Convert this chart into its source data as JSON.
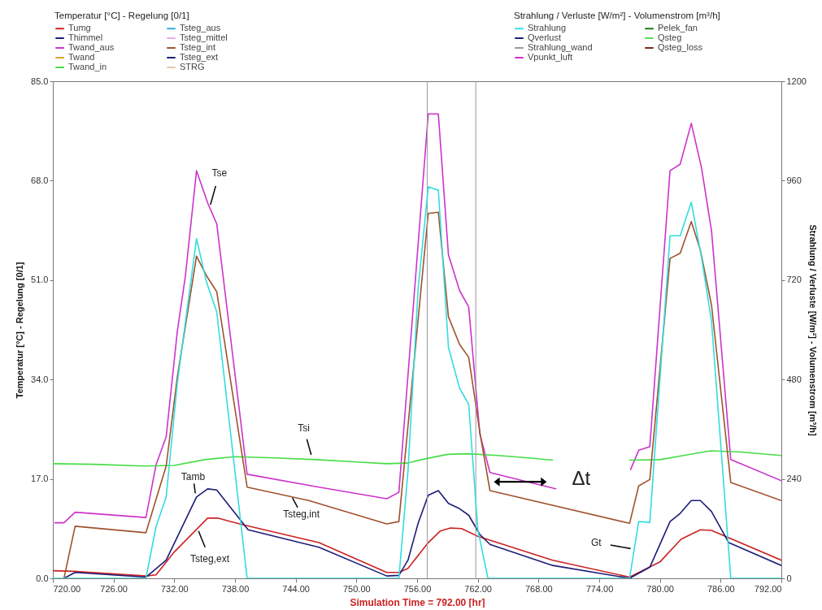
{
  "chart_data": {
    "type": "line",
    "xlabel": "Simulation Time = 792.00 [hr]",
    "ylabel": "Temperatur [°C] - Regelung [0/1]",
    "y2label": "Strahlung / Verluste [W/m²] - Volumenstrom [m³/h]",
    "legend_title": "Temperatur [°C] - Regelung [0/1]",
    "legend": "top",
    "line_style": "solid",
    "xlim": [
      720,
      792
    ],
    "xticks": [
      {
        "value": 720,
        "label": "720.00"
      },
      {
        "value": 726,
        "label": "726.00"
      },
      {
        "value": 732,
        "label": "732.00"
      },
      {
        "value": 738,
        "label": "738.00"
      },
      {
        "value": 744,
        "label": "744.00"
      },
      {
        "value": 750,
        "label": "750.00"
      },
      {
        "value": 756,
        "label": "756.00"
      },
      {
        "value": 762,
        "label": "762.00"
      },
      {
        "value": 768,
        "label": "768.00"
      },
      {
        "value": 774,
        "label": "774.00"
      },
      {
        "value": 780,
        "label": "780.00"
      },
      {
        "value": 786,
        "label": "786.00"
      },
      {
        "value": 792,
        "label": "792.00"
      }
    ],
    "ylim": [
      0,
      85
    ],
    "yticks": [
      {
        "value": 0,
        "label": "0.0"
      },
      {
        "value": 17,
        "label": "17.0"
      },
      {
        "value": 34,
        "label": "34.0"
      },
      {
        "value": 51,
        "label": "51.0"
      },
      {
        "value": 68,
        "label": "68.0"
      },
      {
        "value": 85,
        "label": "85.0"
      }
    ],
    "y2lim": [
      0,
      1200
    ],
    "y2ticks": [
      0,
      240,
      480,
      720,
      960,
      1200
    ],
    "series": [
      {
        "name": "Tumg",
        "color": "#cc2222",
        "x": [
          720,
          722,
          729.2,
          730.2,
          732,
          735.3,
          736.3,
          737.6,
          739.2,
          746.3,
          753.0,
          754.2,
          755.1,
          757.1,
          758.3,
          759.3,
          760.4,
          762.0,
          769.4,
          777.0,
          780.0,
          782.1,
          784.0,
          785.1,
          792
        ],
        "values": [
          1.3,
          1.2,
          0.4,
          0.6,
          4.5,
          10.3,
          10.3,
          9.7,
          9.0,
          6.1,
          1.0,
          1.0,
          1.7,
          6.1,
          8.1,
          8.6,
          8.5,
          7.2,
          3.1,
          0.2,
          2.8,
          6.7,
          8.3,
          8.2,
          3.1
        ]
      },
      {
        "name": "Thimmel",
        "color": "#1c1c78",
        "x": [
          721.1,
          722.2,
          729.2,
          731.2,
          734.2,
          735.3,
          736.2,
          739.3,
          746.3,
          753.0,
          754.2,
          755.1,
          756.1,
          757.1,
          758.1,
          759.1,
          760.2,
          761.1,
          762.2,
          763.2,
          769.4,
          777.0,
          779.0,
          781.0,
          782.0,
          783.1,
          784.0,
          785.1,
          786.8,
          792
        ],
        "values": [
          0,
          1.0,
          0.2,
          3.1,
          13.9,
          15.3,
          15.1,
          8.3,
          5.3,
          0.4,
          0.5,
          3.1,
          9.4,
          14.2,
          15.0,
          12.8,
          11.9,
          10.8,
          7.5,
          5.8,
          2.2,
          0,
          1.9,
          9.7,
          11.1,
          13.3,
          13.3,
          11.4,
          6.1,
          2.2
        ]
      },
      {
        "name": "Twand_aus",
        "color": "#cc33cc",
        "x": [
          720.2,
          721.1,
          722.2,
          729.2,
          730.2,
          731.2,
          732.3,
          733.1,
          734.2,
          735.3,
          736.2,
          739.2,
          746.3,
          753.0,
          754.2,
          757.1,
          758.1,
          759.1,
          760.2,
          761.1,
          762.2,
          763.2,
          769.7,
          773,
          777.1,
          777.9,
          779.0,
          781.0,
          782.0,
          783.1,
          784.1,
          785.1,
          787.0,
          792
        ],
        "values": [
          9.5,
          9.5,
          11.3,
          10.4,
          19.4,
          24.2,
          42.2,
          51.7,
          69.7,
          64.2,
          60.6,
          17.8,
          15.6,
          13.6,
          14.7,
          79.4,
          79.4,
          55.3,
          49.2,
          46.4,
          24.7,
          18.1,
          15.3,
          null,
          18.6,
          21.9,
          22.5,
          69.7,
          70.8,
          77.8,
          70.3,
          59.4,
          20.3,
          16.7
        ]
      },
      {
        "name": "Twand",
        "color": "#e0a030"
      },
      {
        "name": "Twand_in",
        "color": "#44dd44",
        "x": [
          720,
          724,
          729,
          732,
          735,
          738,
          742,
          746,
          750,
          753,
          755,
          757,
          759,
          761,
          764,
          767,
          769.4,
          773,
          777.0,
          780,
          782,
          785,
          788,
          792
        ],
        "values": [
          19.6,
          19.5,
          19.2,
          19.3,
          20.3,
          20.8,
          20.6,
          20.3,
          19.9,
          19.6,
          19.7,
          20.5,
          21.2,
          21.3,
          21.0,
          20.6,
          20.2,
          null,
          20.2,
          20.3,
          20.9,
          21.8,
          21.6,
          21.0
        ]
      },
      {
        "name": "Tsteg_aus",
        "color": "#33aadd"
      },
      {
        "name": "Tsteg_mittel",
        "color": "#eeaaee"
      },
      {
        "name": "Tsteg_int",
        "color": "#a0522d",
        "x": [
          721.1,
          722.2,
          729.2,
          731.2,
          732.3,
          734.2,
          735.2,
          736.2,
          739.2,
          745.3,
          753.0,
          754.2,
          757.1,
          758.1,
          759.1,
          760.2,
          761.1,
          762.2,
          763.2,
          777.0,
          777.9,
          779.0,
          781.0,
          782.0,
          783.1,
          784.0,
          785.1,
          787.0,
          792
        ],
        "values": [
          0,
          8.9,
          7.8,
          19.2,
          34.4,
          55.1,
          51.7,
          49.0,
          15.6,
          13.3,
          9.3,
          9.7,
          62.4,
          62.6,
          44.7,
          40.0,
          37.8,
          25.0,
          15.0,
          9.4,
          15.8,
          16.9,
          54.7,
          55.6,
          61.0,
          56.1,
          46.7,
          16.4,
          13.3
        ]
      },
      {
        "name": "Tsteg_ext",
        "color": "#1c1c78"
      },
      {
        "name": "STRG",
        "color": "#e0c8a8"
      },
      {
        "name": "Strahlung",
        "color": "#33dddd",
        "axis": "y2",
        "x": [
          720,
          729.2,
          730.2,
          731.2,
          732.3,
          734.2,
          735.2,
          736.2,
          739.2,
          753.3,
          754.2,
          755.1,
          756.1,
          757.1,
          758.1,
          759.1,
          760.2,
          761.1,
          762.0,
          763.0,
          777.0,
          777.9,
          779.0,
          781.0,
          782.0,
          783.1,
          784.1,
          785.1,
          787.0,
          792
        ],
        "values": [
          0,
          0,
          125,
          196,
          471,
          820,
          714,
          643,
          0,
          0,
          0,
          259,
          698,
          945,
          937,
          557,
          459,
          420,
          118,
          0,
          0,
          137,
          135,
          827,
          827,
          908,
          776,
          620,
          0,
          0
        ]
      },
      {
        "name": "Qverlust",
        "color": "#1c1c78",
        "axis": "y2"
      },
      {
        "name": "Strahlung_wand",
        "color": "#999999",
        "axis": "y2"
      },
      {
        "name": "Vpunkt_luft",
        "color": "#cc33cc",
        "axis": "y2"
      },
      {
        "name": "Pelek_fan",
        "color": "#1a7a1a",
        "axis": "y2"
      },
      {
        "name": "Qsteg",
        "color": "#55dd55",
        "axis": "y2"
      },
      {
        "name": "Qsteg_loss",
        "color": "#7a2a1a",
        "axis": "y2"
      }
    ],
    "ref_lines": [
      {
        "axis": "x",
        "value": 757.0,
        "color": "#999999"
      },
      {
        "axis": "x",
        "value": 761.8,
        "color": "#999999"
      }
    ],
    "annotations": [
      "Strahlung / Verluste [W/m²] - Volumenstrom [m³/h]",
      {
        "text": "Tse",
        "x": 735.5,
        "y": 63.4
      },
      {
        "text": "Tsi",
        "x": 745.6,
        "y": 20.7
      },
      {
        "text": "Tamb",
        "x": 734.1,
        "y": 14.3
      },
      {
        "text": "Tsteg,int",
        "x": 743.6,
        "y": 14.0
      },
      {
        "text": "Tsteg,ext",
        "x": 734.3,
        "y": 8.5
      },
      {
        "text": "Gt",
        "x": 777.4,
        "y": 5.0
      },
      {
        "text": "Δt",
        "x": 766.2,
        "y": 16.5
      }
    ]
  }
}
